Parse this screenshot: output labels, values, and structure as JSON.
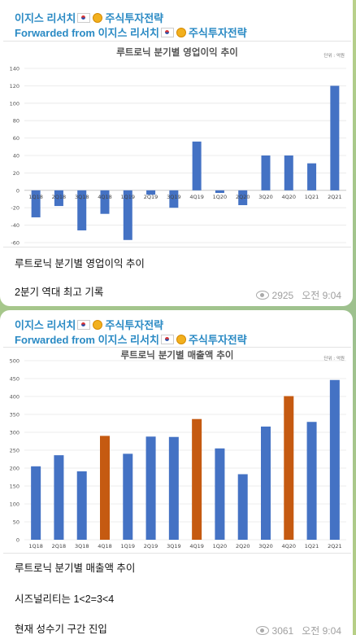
{
  "post1": {
    "channel": "이지스 리서치",
    "channel_suffix": "주식투자전략",
    "forwarded": "Forwarded from 이지스 리서치",
    "forwarded_suffix": "주식투자전략",
    "text_line1": "루트로닉 분기별 영업이익 추이",
    "text_line2": "2분기 역대 최고 기록",
    "views": "2925",
    "time": "오전 9:04"
  },
  "post2": {
    "channel": "이지스 리서치",
    "channel_suffix": "주식투자전략",
    "forwarded": "Forwarded from 이지스 리서치",
    "forwarded_suffix": "주식투자전략",
    "text_line1": "루트로닉 분기별 매출액 추이",
    "text_line2": "시즈널리티는 1<2=3<4",
    "text_line3": "현재 성수기 구간 진입",
    "views": "3061",
    "time": "오전 9:04"
  },
  "colors": {
    "bar_blue": "#4472c4",
    "bar_orange": "#c55a11",
    "link": "#2a8ac4"
  },
  "chart_data": [
    {
      "type": "bar",
      "title": "루트로닉 분기별 영업이익 추이",
      "unit_note": "단위 : 억원",
      "categories": [
        "1Q18",
        "2Q18",
        "3Q18",
        "4Q18",
        "1Q19",
        "2Q19",
        "3Q19",
        "4Q19",
        "1Q20",
        "2Q20",
        "3Q20",
        "4Q20",
        "1Q21",
        "2Q21"
      ],
      "values": [
        -31,
        -18,
        -46,
        -27,
        -57,
        -5,
        -20,
        56,
        -3,
        -17,
        40,
        40,
        31,
        120
      ],
      "yticks": [
        -60,
        -40,
        -20,
        0,
        20,
        40,
        60,
        80,
        100,
        120,
        140
      ],
      "ylim": [
        -60,
        140
      ],
      "grid": true
    },
    {
      "type": "bar",
      "title": "루트로닉 분기별 매출액 추이",
      "unit_note": "단위 : 억원",
      "categories": [
        "1Q18",
        "2Q18",
        "3Q18",
        "4Q18",
        "1Q19",
        "2Q19",
        "3Q19",
        "4Q19",
        "1Q20",
        "2Q20",
        "3Q20",
        "4Q20",
        "1Q21",
        "2Q21"
      ],
      "values": [
        205,
        236,
        191,
        290,
        240,
        288,
        287,
        337,
        255,
        183,
        316,
        401,
        329,
        446
      ],
      "highlight": [
        false,
        false,
        false,
        true,
        false,
        false,
        false,
        true,
        false,
        false,
        false,
        true,
        false,
        false
      ],
      "yticks": [
        0,
        50,
        100,
        150,
        200,
        250,
        300,
        350,
        400,
        450,
        500
      ],
      "ylim": [
        0,
        500
      ],
      "grid": true
    }
  ]
}
